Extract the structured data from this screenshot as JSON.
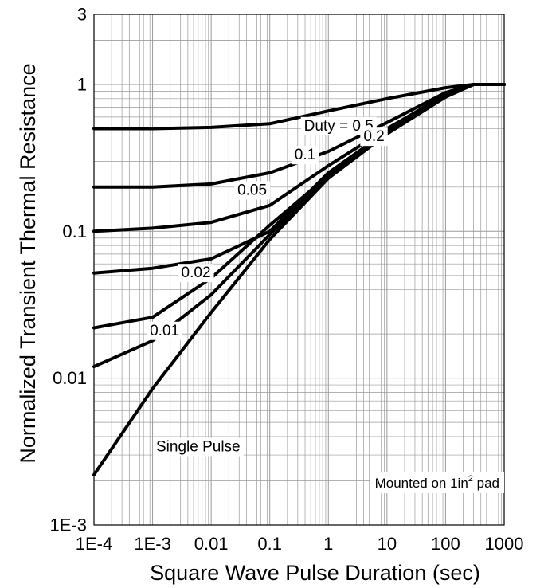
{
  "chart_data": {
    "type": "line",
    "xlabel": "Square Wave Pulse Duration (sec)",
    "ylabel": "Normalized Transient Thermal Resistance",
    "x_scale": "log",
    "y_scale": "log",
    "xlim": [
      0.0001,
      1000
    ],
    "ylim": [
      0.001,
      3
    ],
    "grid": true,
    "x_ticks": [
      {
        "value": 0.0001,
        "label": "1E-4"
      },
      {
        "value": 0.001,
        "label": "1E-3"
      },
      {
        "value": 0.01,
        "label": "0.01"
      },
      {
        "value": 0.1,
        "label": "0.1"
      },
      {
        "value": 1,
        "label": "1"
      },
      {
        "value": 10,
        "label": "10"
      },
      {
        "value": 100,
        "label": "100"
      },
      {
        "value": 1000,
        "label": "1000"
      }
    ],
    "y_ticks": [
      {
        "value": 0.001,
        "label": "1E-3"
      },
      {
        "value": 0.01,
        "label": "0.01"
      },
      {
        "value": 0.1,
        "label": "0.1"
      },
      {
        "value": 1,
        "label": "1"
      },
      {
        "value": 3,
        "label": "3"
      }
    ],
    "series": [
      {
        "name": "Duty = 0.5",
        "label_at": [
          1.5,
          0.52
        ],
        "x": [
          0.0001,
          0.001,
          0.01,
          0.1,
          1,
          10,
          100,
          300,
          1000
        ],
        "y": [
          0.5,
          0.5,
          0.51,
          0.54,
          0.66,
          0.8,
          0.95,
          1.0,
          1.0
        ]
      },
      {
        "name": "0.2",
        "label_at": [
          6,
          0.44
        ],
        "x": [
          0.0001,
          0.001,
          0.01,
          0.1,
          1,
          10,
          100,
          300,
          1000
        ],
        "y": [
          0.2,
          0.2,
          0.21,
          0.25,
          0.35,
          0.55,
          0.88,
          1.0,
          1.0
        ]
      },
      {
        "name": "0.1",
        "label_at": [
          0.4,
          0.33
        ],
        "x": [
          0.0001,
          0.001,
          0.01,
          0.1,
          1,
          10,
          100,
          300,
          1000
        ],
        "y": [
          0.1,
          0.105,
          0.115,
          0.15,
          0.28,
          0.5,
          0.85,
          1.0,
          1.0
        ]
      },
      {
        "name": "0.05",
        "label_at": [
          0.05,
          0.19
        ],
        "x": [
          0.0001,
          0.001,
          0.01,
          0.1,
          1,
          10,
          100,
          300,
          1000
        ],
        "y": [
          0.052,
          0.056,
          0.065,
          0.1,
          0.25,
          0.48,
          0.84,
          1.0,
          1.0
        ]
      },
      {
        "name": "0.02",
        "label_at": [
          0.0055,
          0.052
        ],
        "x": [
          0.0001,
          0.001,
          0.01,
          0.1,
          1,
          10,
          100,
          300,
          1000
        ],
        "y": [
          0.022,
          0.026,
          0.048,
          0.11,
          0.24,
          0.47,
          0.83,
          1.0,
          1.0
        ]
      },
      {
        "name": "0.01",
        "label_at": [
          0.0016,
          0.021
        ],
        "x": [
          0.0001,
          0.001,
          0.01,
          0.1,
          1,
          10,
          100,
          300,
          1000
        ],
        "y": [
          0.012,
          0.018,
          0.037,
          0.095,
          0.235,
          0.465,
          0.83,
          1.0,
          1.0
        ]
      },
      {
        "name": "Single Pulse",
        "label_at": [
          0.006,
          0.0034
        ],
        "x": [
          0.0001,
          0.001,
          0.01,
          0.1,
          1,
          10,
          100,
          300,
          1000
        ],
        "y": [
          0.0022,
          0.0085,
          0.028,
          0.088,
          0.23,
          0.46,
          0.82,
          1.0,
          1.0
        ]
      }
    ],
    "annotations": [
      {
        "text": "Mounted on 1in",
        "superscript": "2",
        "suffix": " pad",
        "position": "bottom-right"
      }
    ]
  }
}
